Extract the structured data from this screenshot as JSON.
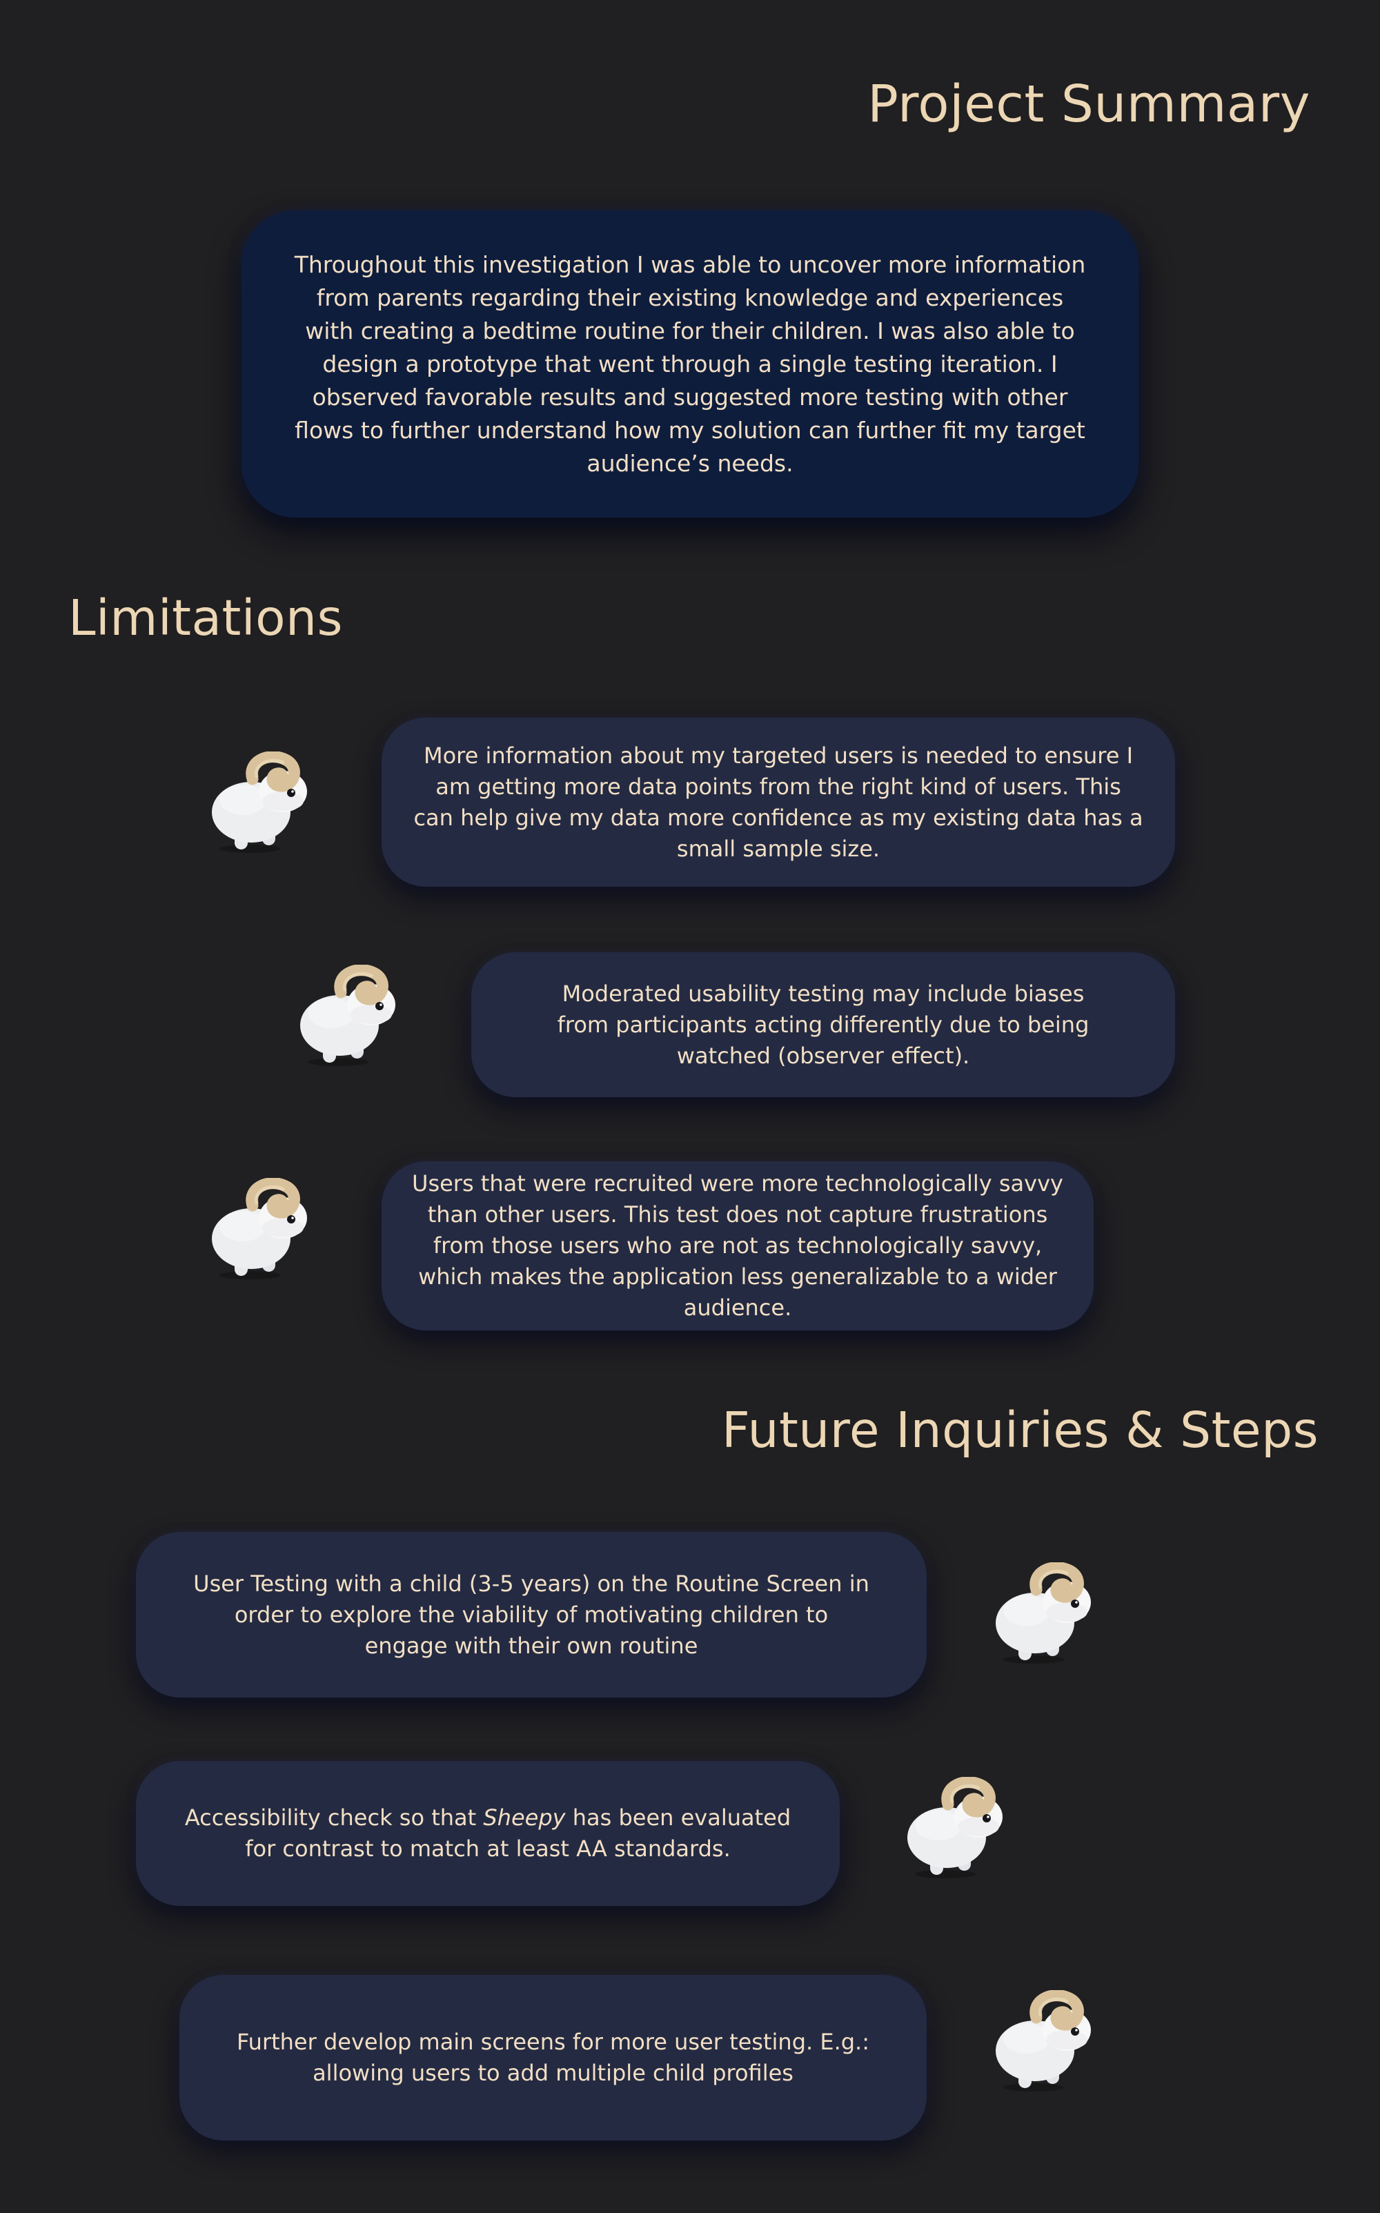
{
  "summary": {
    "heading": "Project Summary",
    "body": "Throughout this investigation I was able to uncover more information from parents regarding their existing knowledge and experiences with creating a bedtime routine for their children. I was also able to design a prototype that went through a single testing iteration. I observed favorable results and suggested more testing with other flows to further understand how my solution can further fit my target audience’s needs."
  },
  "limitations": {
    "heading": "Limitations",
    "items": [
      {
        "text": "More information about my targeted users is needed to ensure I am getting more data points from the right kind of users. This can help give my data more confidence as my existing data has a small sample size.",
        "icon": "sheep-icon"
      },
      {
        "text": "Moderated usability testing may include biases from participants acting differently due to being watched (observer effect).",
        "icon": "sheep-icon"
      },
      {
        "text": "Users that were recruited were more technologically savvy than other users. This test does not capture frustrations from those users who are not as technologically savvy, which makes the application less generalizable to a wider audience.",
        "icon": "sheep-icon"
      }
    ]
  },
  "future": {
    "heading": "Future Inquiries & Steps",
    "items": [
      {
        "text": "User Testing with a child (3-5 years) on the Routine Screen in order to explore the viability of motivating children to engage with their own routine",
        "icon": "sheep-icon"
      },
      {
        "text_before": "Accessibility check so that ",
        "text_emphasis": "Sheepy",
        "text_after": " has been evaluated for contrast to match at least AA standards.",
        "icon": "sheep-icon"
      },
      {
        "text": "Further develop main screens for more user testing. E.g.: allowing users to add multiple child profiles",
        "icon": "sheep-icon"
      }
    ]
  },
  "colors": {
    "background": "#201f21",
    "heading": "#ecd6b4",
    "text": "#f2dfc4",
    "summary_card": "#0f1d3d",
    "card": "#242a42",
    "sheep_body": "#eceef0",
    "sheep_face": "#f7f7f8",
    "sheep_horn": "#d9c29b"
  }
}
